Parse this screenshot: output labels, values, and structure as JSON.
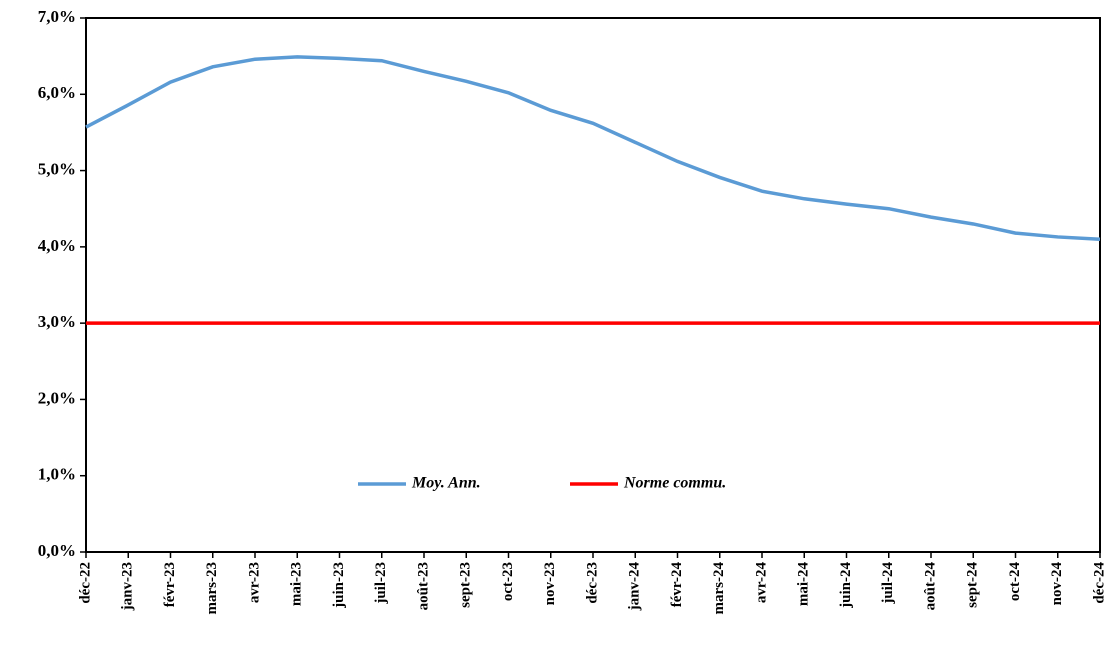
{
  "chart_data": {
    "type": "line",
    "categories": [
      "déc-22",
      "janv-23",
      "févr-23",
      "mars-23",
      "avr-23",
      "mai-23",
      "juin-23",
      "juil-23",
      "août-23",
      "sept-23",
      "oct-23",
      "nov-23",
      "déc-23",
      "janv-24",
      "févr-24",
      "mars-24",
      "avr-24",
      "mai-24",
      "juin-24",
      "juil-24",
      "août-24",
      "sept-24",
      "oct-24",
      "nov-24",
      "déc-24"
    ],
    "series": [
      {
        "name": "Moy. Ann.",
        "color": "#5b9bd5",
        "values": [
          5.57,
          5.86,
          6.16,
          6.36,
          6.46,
          6.49,
          6.47,
          6.44,
          6.3,
          6.17,
          6.02,
          5.79,
          5.62,
          5.37,
          5.12,
          4.91,
          4.73,
          4.63,
          4.56,
          4.5,
          4.39,
          4.3,
          4.18,
          4.13,
          4.1
        ]
      },
      {
        "name": "Norme commu.",
        "color": "#ff0000",
        "values": [
          3,
          3,
          3,
          3,
          3,
          3,
          3,
          3,
          3,
          3,
          3,
          3,
          3,
          3,
          3,
          3,
          3,
          3,
          3,
          3,
          3,
          3,
          3,
          3,
          3
        ]
      }
    ],
    "ylim": [
      0,
      7
    ],
    "yticks": [
      {
        "value": 0,
        "label": "0,0%"
      },
      {
        "value": 1,
        "label": "1,0%"
      },
      {
        "value": 2,
        "label": "2,0%"
      },
      {
        "value": 3,
        "label": "3,0%"
      },
      {
        "value": 4,
        "label": "4,0%"
      },
      {
        "value": 5,
        "label": "5,0%"
      },
      {
        "value": 6,
        "label": "6,0%"
      },
      {
        "value": 7,
        "label": "7,0%"
      }
    ],
    "grid": false
  }
}
